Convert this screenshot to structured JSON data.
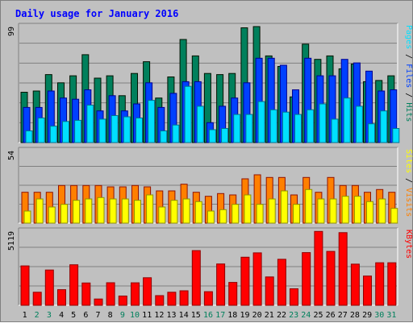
{
  "page_title": "Daily usage for January 2016",
  "colors": {
    "background": "#c0c0c0",
    "title": "#0000ff",
    "hits": "#00805c",
    "files": "#0040ff",
    "pages": "#00e0ff",
    "visits": "#ff8000",
    "sites": "#ffff00",
    "kbytes": "#ff0000",
    "weekday_label": "#000000",
    "weekend_label": "#00805c"
  },
  "chart_data": [
    {
      "type": "bar",
      "panel": "hits-files-pages",
      "y_max_label": "99",
      "ylim": [
        0,
        99
      ],
      "legend": [
        "Pages",
        "/",
        "Files",
        "/",
        "Hits"
      ],
      "categories": [
        "1",
        "2",
        "3",
        "4",
        "5",
        "6",
        "7",
        "8",
        "9",
        "10",
        "11",
        "12",
        "13",
        "14",
        "15",
        "16",
        "17",
        "18",
        "19",
        "20",
        "21",
        "22",
        "23",
        "24",
        "25",
        "26",
        "27",
        "28",
        "29",
        "30",
        "31"
      ],
      "series": [
        {
          "name": "Hits",
          "values": [
            43,
            44,
            58,
            51,
            57,
            75,
            55,
            57,
            40,
            59,
            69,
            38,
            56,
            88,
            74,
            59,
            58,
            59,
            98,
            99,
            74,
            65,
            39,
            84,
            71,
            74,
            63,
            67,
            52,
            53,
            57
          ]
        },
        {
          "name": "Files",
          "values": [
            30,
            30,
            44,
            38,
            37,
            45,
            27,
            40,
            27,
            33,
            51,
            30,
            42,
            52,
            52,
            17,
            31,
            38,
            51,
            72,
            72,
            66,
            45,
            72,
            57,
            57,
            71,
            68,
            61,
            44,
            45
          ]
        },
        {
          "name": "Pages",
          "values": [
            10,
            21,
            14,
            18,
            19,
            32,
            20,
            23,
            22,
            21,
            36,
            10,
            15,
            48,
            31,
            11,
            12,
            24,
            24,
            35,
            28,
            26,
            24,
            28,
            33,
            20,
            38,
            31,
            16,
            27,
            12
          ]
        }
      ]
    },
    {
      "type": "bar",
      "panel": "visits-sites",
      "y_max_label": "54",
      "ylim": [
        0,
        54
      ],
      "legend": [
        "Sites",
        "/",
        "Visits"
      ],
      "categories": [
        "1",
        "2",
        "3",
        "4",
        "5",
        "6",
        "7",
        "8",
        "9",
        "10",
        "11",
        "12",
        "13",
        "14",
        "15",
        "16",
        "17",
        "18",
        "19",
        "20",
        "21",
        "22",
        "23",
        "24",
        "25",
        "26",
        "27",
        "28",
        "29",
        "30",
        "31"
      ],
      "series": [
        {
          "name": "Visits",
          "values": [
            23,
            23,
            23,
            28,
            28,
            28,
            28,
            27,
            27,
            28,
            27,
            24,
            24,
            29,
            23,
            20,
            22,
            21,
            33,
            36,
            34,
            34,
            21,
            34,
            23,
            34,
            28,
            28,
            23,
            25,
            23
          ]
        },
        {
          "name": "Sites",
          "values": [
            9,
            18,
            12,
            14,
            17,
            18,
            19,
            18,
            18,
            17,
            21,
            12,
            17,
            18,
            16,
            9,
            10,
            14,
            21,
            14,
            18,
            24,
            14,
            25,
            18,
            18,
            20,
            20,
            16,
            18,
            11
          ]
        }
      ]
    },
    {
      "type": "bar",
      "panel": "kbytes",
      "y_max_label": "5119",
      "ylim": [
        0,
        5119
      ],
      "legend": [
        "KBytes"
      ],
      "categories": [
        "1",
        "2",
        "3",
        "4",
        "5",
        "6",
        "7",
        "8",
        "9",
        "10",
        "11",
        "12",
        "13",
        "14",
        "15",
        "16",
        "17",
        "18",
        "19",
        "20",
        "21",
        "22",
        "23",
        "24",
        "25",
        "26",
        "27",
        "28",
        "29",
        "30",
        "31"
      ],
      "series": [
        {
          "name": "KBytes",
          "values": [
            2720,
            899,
            2439,
            1080,
            2798,
            1540,
            432,
            1560,
            639,
            1555,
            1904,
            670,
            899,
            1002,
            3780,
            940,
            2857,
            1580,
            3320,
            3620,
            1960,
            3179,
            1142,
            3640,
            5100,
            3720,
            5018,
            2845,
            2019,
            2939,
            2939
          ]
        }
      ]
    }
  ],
  "x_labels": [
    "1",
    "2",
    "3",
    "4",
    "5",
    "6",
    "7",
    "8",
    "9",
    "10",
    "11",
    "12",
    "13",
    "14",
    "15",
    "16",
    "17",
    "18",
    "19",
    "20",
    "21",
    "22",
    "23",
    "24",
    "25",
    "26",
    "27",
    "28",
    "29",
    "30",
    "31"
  ],
  "weekend_days": [
    "2",
    "3",
    "9",
    "10",
    "16",
    "17",
    "23",
    "24",
    "30",
    "31"
  ]
}
